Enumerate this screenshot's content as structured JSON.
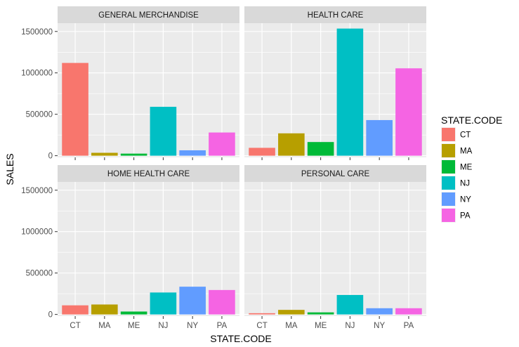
{
  "chart_data": {
    "type": "bar",
    "facet_layout": "2x2",
    "xlabel": "STATE.CODE",
    "ylabel": "SALES",
    "categories": [
      "CT",
      "MA",
      "ME",
      "NJ",
      "NY",
      "PA"
    ],
    "ylim": [
      -20000,
      1600000
    ],
    "yticks": [
      0,
      500000,
      1000000,
      1500000
    ],
    "ytick_labels": [
      "0",
      "500000",
      "1000000",
      "1500000"
    ],
    "grid": true,
    "legend": {
      "title": "STATE.CODE",
      "placement": "right",
      "entries": [
        "CT",
        "MA",
        "ME",
        "NJ",
        "NY",
        "PA"
      ]
    },
    "colors": {
      "CT": "#F8766D",
      "MA": "#B79F00",
      "ME": "#00BA38",
      "NJ": "#00BFC4",
      "NY": "#619CFF",
      "PA": "#F564E3"
    },
    "panel_background": "#EBEBEB",
    "strip_background": "#D9D9D9",
    "panels": [
      {
        "name": "GENERAL MERCHANDISE",
        "values": [
          1120000,
          35000,
          25000,
          590000,
          65000,
          280000
        ]
      },
      {
        "name": "HEALTH CARE",
        "values": [
          95000,
          270000,
          165000,
          1535000,
          430000,
          1055000
        ]
      },
      {
        "name": "HOME HEALTH CARE",
        "values": [
          110000,
          120000,
          35000,
          265000,
          335000,
          295000
        ]
      },
      {
        "name": "PERSONAL CARE",
        "values": [
          15000,
          55000,
          25000,
          235000,
          75000,
          75000
        ]
      }
    ]
  }
}
